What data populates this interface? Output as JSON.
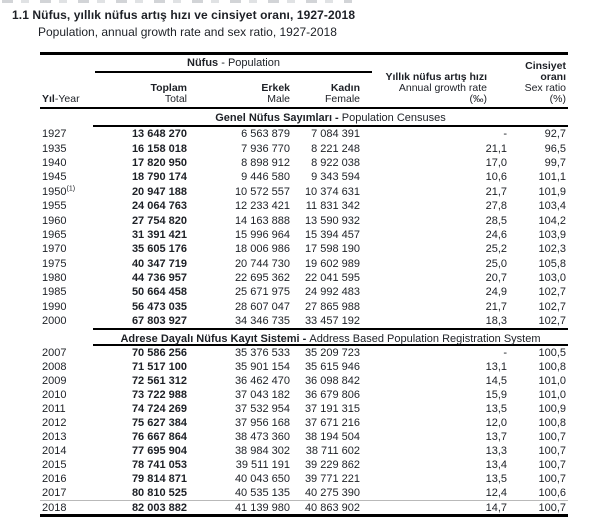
{
  "page": {
    "title_tr": "1.1 Nüfus, yıllık nüfus artış hızı ve cinsiyet oranı, 1927-2018",
    "title_en": "Population, annual growth rate and sex ratio, 1927-2018"
  },
  "table": {
    "group_header": {
      "tr": "Nüfus",
      "sep": " - ",
      "en": "Population"
    },
    "columns": {
      "year": {
        "tr": "Yıl",
        "sep": "-",
        "en": "Year"
      },
      "total": {
        "tr": "Toplam",
        "en": "Total"
      },
      "male": {
        "tr": "Erkek",
        "en": "Male"
      },
      "female": {
        "tr": "Kadın",
        "en": "Female"
      },
      "growth": {
        "tr": "Yıllık nüfus artış hızı",
        "en": "Annual growth rate",
        "unit": "(‰)"
      },
      "sex": {
        "tr": "Cinsiyet oranı",
        "en": "Sex ratio",
        "unit": "(%)"
      }
    },
    "sections": [
      {
        "title_tr": "Genel Nüfus Sayımları",
        "title_en": "Population Censuses",
        "rows": [
          {
            "year": "1927",
            "sup": "",
            "total": "13 648 270",
            "male": "6 563 879",
            "female": "7 084 391",
            "growth": "-",
            "sex": "92,7"
          },
          {
            "year": "1935",
            "sup": "",
            "total": "16 158 018",
            "male": "7 936 770",
            "female": "8 221 248",
            "growth": "21,1",
            "sex": "96,5"
          },
          {
            "year": "1940",
            "sup": "",
            "total": "17 820 950",
            "male": "8 898 912",
            "female": "8 922 038",
            "growth": "17,0",
            "sex": "99,7"
          },
          {
            "year": "1945",
            "sup": "",
            "total": "18 790 174",
            "male": "9 446 580",
            "female": "9 343 594",
            "growth": "10,6",
            "sex": "101,1"
          },
          {
            "year": "1950",
            "sup": "(1)",
            "total": "20 947 188",
            "male": "10 572 557",
            "female": "10 374 631",
            "growth": "21,7",
            "sex": "101,9"
          },
          {
            "year": "1955",
            "sup": "",
            "total": "24 064 763",
            "male": "12 233 421",
            "female": "11 831 342",
            "growth": "27,8",
            "sex": "103,4"
          },
          {
            "year": "1960",
            "sup": "",
            "total": "27 754 820",
            "male": "14 163 888",
            "female": "13 590 932",
            "growth": "28,5",
            "sex": "104,2"
          },
          {
            "year": "1965",
            "sup": "",
            "total": "31 391 421",
            "male": "15 996 964",
            "female": "15 394 457",
            "growth": "24,6",
            "sex": "103,9"
          },
          {
            "year": "1970",
            "sup": "",
            "total": "35 605 176",
            "male": "18 006 986",
            "female": "17 598 190",
            "growth": "25,2",
            "sex": "102,3"
          },
          {
            "year": "1975",
            "sup": "",
            "total": "40 347 719",
            "male": "20 744 730",
            "female": "19 602 989",
            "growth": "25,0",
            "sex": "105,8"
          },
          {
            "year": "1980",
            "sup": "",
            "total": "44 736 957",
            "male": "22 695 362",
            "female": "22 041 595",
            "growth": "20,7",
            "sex": "103,0"
          },
          {
            "year": "1985",
            "sup": "",
            "total": "50 664 458",
            "male": "25 671 975",
            "female": "24 992 483",
            "growth": "24,9",
            "sex": "102,7"
          },
          {
            "year": "1990",
            "sup": "",
            "total": "56 473 035",
            "male": "28 607 047",
            "female": "27 865 988",
            "growth": "21,7",
            "sex": "102,7"
          },
          {
            "year": "2000",
            "sup": "",
            "total": "67 803 927",
            "male": "34 346 735",
            "female": "33 457 192",
            "growth": "18,3",
            "sex": "102,7"
          }
        ]
      },
      {
        "title_tr": "Adrese Dayalı Nüfus Kayıt Sistemi",
        "title_en": "Address Based Population Registration System",
        "rows": [
          {
            "year": "2007",
            "sup": "",
            "total": "70 586 256",
            "male": "35 376 533",
            "female": "35 209 723",
            "growth": "-",
            "sex": "100,5"
          },
          {
            "year": "2008",
            "sup": "",
            "total": "71 517 100",
            "male": "35 901 154",
            "female": "35 615 946",
            "growth": "13,1",
            "sex": "100,8"
          },
          {
            "year": "2009",
            "sup": "",
            "total": "72 561 312",
            "male": "36 462 470",
            "female": "36 098 842",
            "growth": "14,5",
            "sex": "101,0"
          },
          {
            "year": "2010",
            "sup": "",
            "total": "73 722 988",
            "male": "37 043 182",
            "female": "36 679 806",
            "growth": "15,9",
            "sex": "101,0"
          },
          {
            "year": "2011",
            "sup": "",
            "total": "74 724 269",
            "male": "37 532 954",
            "female": "37 191 315",
            "growth": "13,5",
            "sex": "100,9"
          },
          {
            "year": "2012",
            "sup": "",
            "total": "75 627 384",
            "male": "37 956 168",
            "female": "37 671 216",
            "growth": "12,0",
            "sex": "100,8"
          },
          {
            "year": "2013",
            "sup": "",
            "total": "76 667 864",
            "male": "38 473 360",
            "female": "38 194 504",
            "growth": "13,7",
            "sex": "100,7"
          },
          {
            "year": "2014",
            "sup": "",
            "total": "77 695 904",
            "male": "38 984 302",
            "female": "38 711 602",
            "growth": "13,3",
            "sex": "100,7"
          },
          {
            "year": "2015",
            "sup": "",
            "total": "78 741 053",
            "male": "39 511 191",
            "female": "39 229 862",
            "growth": "13,4",
            "sex": "100,7"
          },
          {
            "year": "2016",
            "sup": "",
            "total": "79 814 871",
            "male": "40 043 650",
            "female": "39 771 221",
            "growth": "13,5",
            "sex": "100,7"
          },
          {
            "year": "2017",
            "sup": "",
            "total": "80 810 525",
            "male": "40 535 135",
            "female": "40 275 390",
            "growth": "12,4",
            "sex": "100,6"
          },
          {
            "year": "2018",
            "sup": "",
            "total": "82 003 882",
            "male": "41 139 980",
            "female": "40 863 902",
            "growth": "14,7",
            "sex": "100,7"
          }
        ]
      }
    ]
  }
}
